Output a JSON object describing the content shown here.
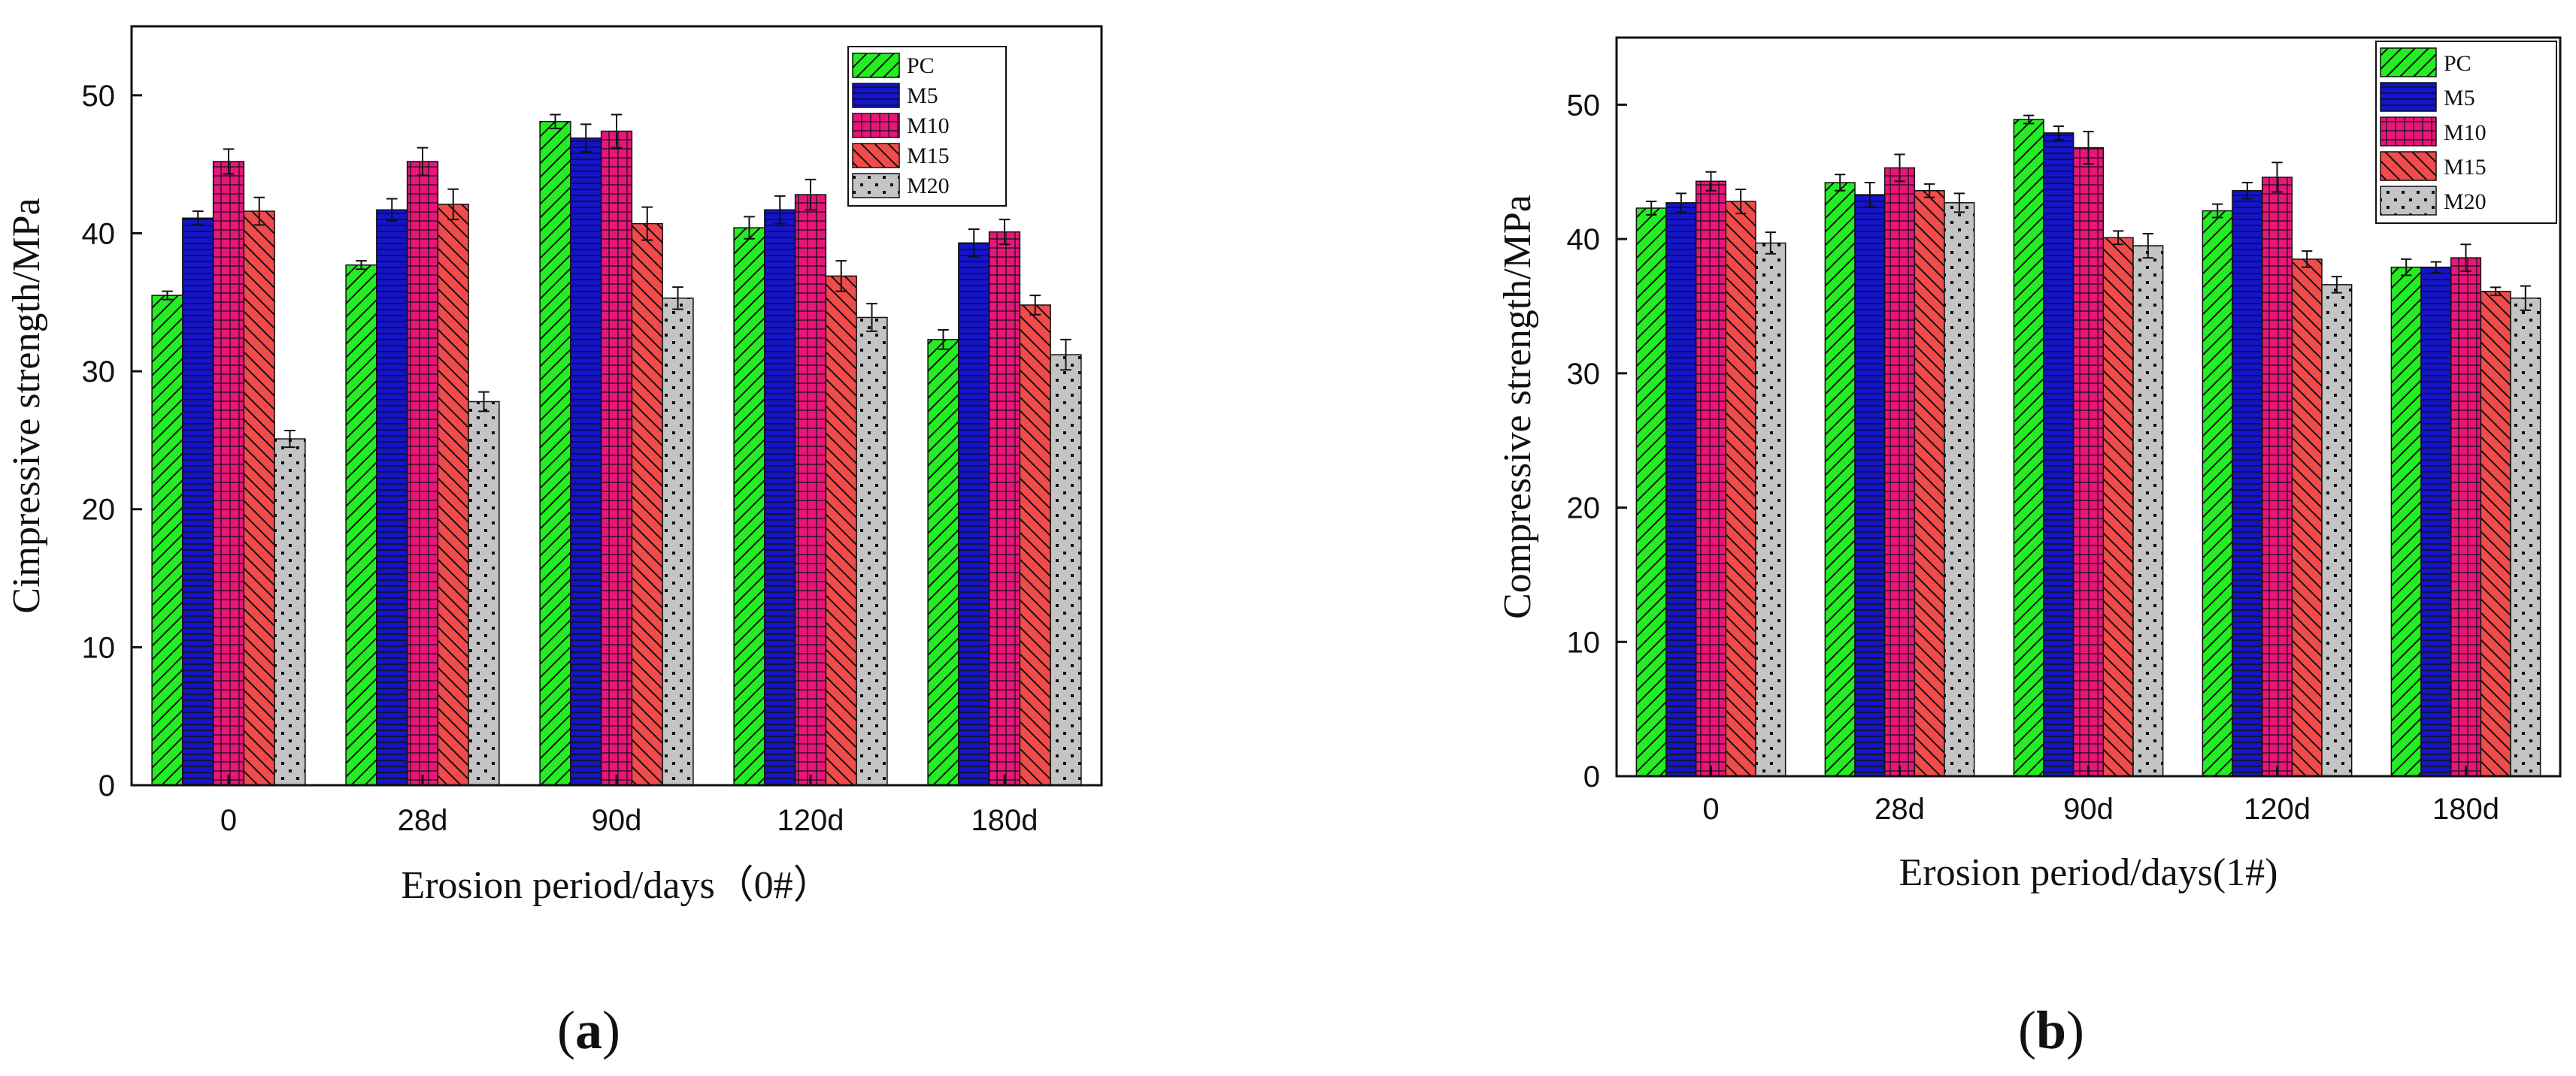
{
  "series_styles": [
    {
      "name": "PC",
      "color": "#22ee22",
      "pattern": "diag"
    },
    {
      "name": "M5",
      "color": "#1414c8",
      "pattern": "hlines"
    },
    {
      "name": "M10",
      "color": "#e8157a",
      "pattern": "grid"
    },
    {
      "name": "M15",
      "color": "#f24b4b",
      "pattern": "backdiag"
    },
    {
      "name": "M20",
      "color": "#c4c4c4",
      "pattern": "dots"
    }
  ],
  "chart_data": [
    {
      "type": "bar",
      "panel": {
        "open": "(",
        "letter": "a",
        "close": ")"
      },
      "title": "",
      "xlabel": "Erosion period/days（0#）",
      "ylabel": "Cimpressive strength/MPa",
      "categories": [
        "0",
        "28d",
        "90d",
        "120d",
        "180d"
      ],
      "ylim": [
        0,
        55
      ],
      "yticks": [
        0,
        10,
        20,
        30,
        40,
        50
      ],
      "legend_position": "top-right",
      "series": [
        {
          "name": "PC",
          "values": [
            35.5,
            37.7,
            48.1,
            40.4,
            32.3
          ],
          "errors": [
            0.3,
            0.3,
            0.5,
            0.8,
            0.7
          ]
        },
        {
          "name": "M5",
          "values": [
            41.1,
            41.7,
            46.9,
            41.7,
            39.3
          ],
          "errors": [
            0.5,
            0.8,
            1.0,
            1.0,
            1.0
          ]
        },
        {
          "name": "M10",
          "values": [
            45.2,
            45.2,
            47.4,
            42.8,
            40.1
          ],
          "errors": [
            0.9,
            1.0,
            1.2,
            1.1,
            0.9
          ]
        },
        {
          "name": "M15",
          "values": [
            41.6,
            42.1,
            40.7,
            36.9,
            34.8
          ],
          "errors": [
            1.0,
            1.1,
            1.2,
            1.1,
            0.7
          ]
        },
        {
          "name": "M20",
          "values": [
            25.1,
            27.8,
            35.3,
            33.9,
            31.2
          ],
          "errors": [
            0.6,
            0.7,
            0.8,
            1.0,
            1.1
          ]
        }
      ]
    },
    {
      "type": "bar",
      "panel": {
        "open": "(",
        "letter": "b",
        "close": ")"
      },
      "title": "",
      "xlabel": "Erosion period/days(1#)",
      "ylabel": "Compressive strength/MPa",
      "categories": [
        "0",
        "28d",
        "90d",
        "120d",
        "180d"
      ],
      "ylim": [
        0,
        55
      ],
      "yticks": [
        0,
        10,
        20,
        30,
        40,
        50
      ],
      "legend_position": "top-right",
      "series": [
        {
          "name": "PC",
          "values": [
            42.3,
            44.2,
            48.9,
            42.1,
            37.9
          ],
          "errors": [
            0.5,
            0.6,
            0.3,
            0.5,
            0.6
          ]
        },
        {
          "name": "M5",
          "values": [
            42.7,
            43.3,
            47.9,
            43.6,
            37.9
          ],
          "errors": [
            0.7,
            0.9,
            0.5,
            0.6,
            0.4
          ]
        },
        {
          "name": "M10",
          "values": [
            44.3,
            45.3,
            46.8,
            44.6,
            38.6
          ],
          "errors": [
            0.7,
            1.0,
            1.2,
            1.1,
            1.0
          ]
        },
        {
          "name": "M15",
          "values": [
            42.8,
            43.6,
            40.1,
            38.5,
            36.1
          ],
          "errors": [
            0.9,
            0.5,
            0.5,
            0.6,
            0.3
          ]
        },
        {
          "name": "M20",
          "values": [
            39.7,
            42.7,
            39.5,
            36.6,
            35.6
          ],
          "errors": [
            0.8,
            0.7,
            0.9,
            0.6,
            0.9
          ]
        }
      ]
    }
  ]
}
